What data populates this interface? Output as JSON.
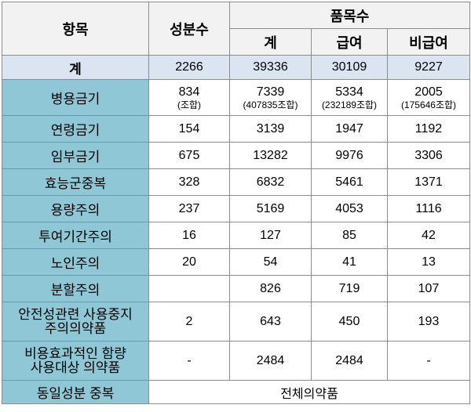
{
  "header": {
    "item": "항목",
    "ingredient_count": "성분수",
    "product_count": "품목수",
    "sub": [
      "계",
      "급여",
      "비급여"
    ]
  },
  "total": {
    "label": "계",
    "values": [
      "2266",
      "39336",
      "30109",
      "9227"
    ]
  },
  "rows": [
    {
      "label": "병용금기",
      "values": [
        "834",
        "7339",
        "5334",
        "2005"
      ],
      "notes": [
        "(조합)",
        "(407835조합)",
        "(232189조합)",
        "(175646조합)"
      ]
    },
    {
      "label": "연령금기",
      "values": [
        "154",
        "3139",
        "1947",
        "1192"
      ]
    },
    {
      "label": "임부금기",
      "values": [
        "675",
        "13282",
        "9976",
        "3306"
      ]
    },
    {
      "label": "효능군중복",
      "values": [
        "328",
        "6832",
        "5461",
        "1371"
      ]
    },
    {
      "label": "용량주의",
      "values": [
        "237",
        "5169",
        "4053",
        "1116"
      ]
    },
    {
      "label": "투여기간주의",
      "values": [
        "16",
        "127",
        "85",
        "42"
      ]
    },
    {
      "label": "노인주의",
      "values": [
        "20",
        "54",
        "41",
        "13"
      ]
    },
    {
      "label": "분할주의",
      "values": [
        "",
        "826",
        "719",
        "107"
      ]
    },
    {
      "label_lines": [
        "안전성관련 사용중지",
        "주의의약품"
      ],
      "values": [
        "2",
        "643",
        "450",
        "193"
      ]
    },
    {
      "label_lines": [
        "비용효과적인 함량",
        "사용대상 의약품"
      ],
      "values": [
        "-",
        "2484",
        "2484",
        "-"
      ]
    }
  ],
  "last_row": {
    "label": "동일성분 중복",
    "value": "전체의약품"
  }
}
